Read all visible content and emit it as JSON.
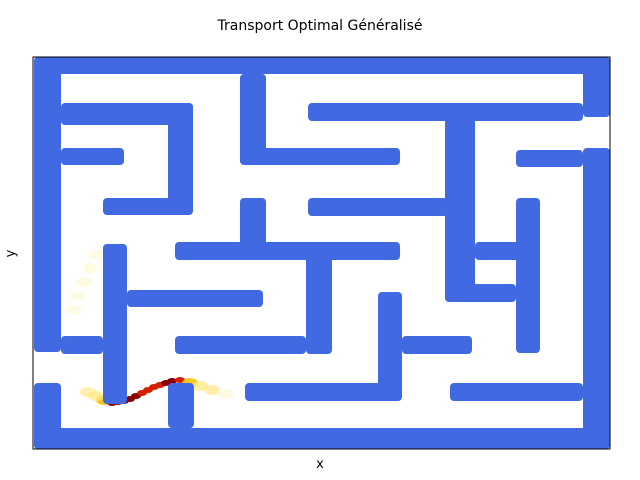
{
  "chart_data": {
    "type": "heatmap",
    "title": "Transport Optimal Généralisé",
    "xlabel": "x",
    "ylabel": "y",
    "grid": false,
    "colors": {
      "wall": "#4169e1",
      "background": "#ffffff"
    },
    "series": [
      {
        "name": "",
        "description": "",
        "points": [
          [
            112,
            403,
            1.0
          ],
          [
            118,
            402,
            1.0
          ],
          [
            124,
            401,
            0.98
          ],
          [
            130,
            399,
            0.95
          ],
          [
            136,
            396,
            0.92
          ],
          [
            142,
            393,
            0.9
          ],
          [
            148,
            390,
            0.88
          ],
          [
            154,
            387,
            0.86
          ],
          [
            160,
            385,
            0.9
          ],
          [
            166,
            383,
            0.92
          ],
          [
            172,
            381,
            0.95
          ],
          [
            180,
            380,
            0.9
          ],
          [
            104,
            400,
            0.55
          ],
          [
            96,
            396,
            0.4
          ],
          [
            88,
            392,
            0.3
          ],
          [
            190,
            383,
            0.5
          ],
          [
            200,
            386,
            0.4
          ],
          [
            212,
            390,
            0.3
          ],
          [
            226,
            394,
            0.2
          ]
        ]
      },
      {
        "name": "",
        "points": [
          [
            96,
            255,
            0.15
          ],
          [
            90,
            268,
            0.18
          ],
          [
            84,
            282,
            0.2
          ],
          [
            78,
            296,
            0.15
          ],
          [
            74,
            310,
            0.1
          ]
        ]
      }
    ]
  }
}
